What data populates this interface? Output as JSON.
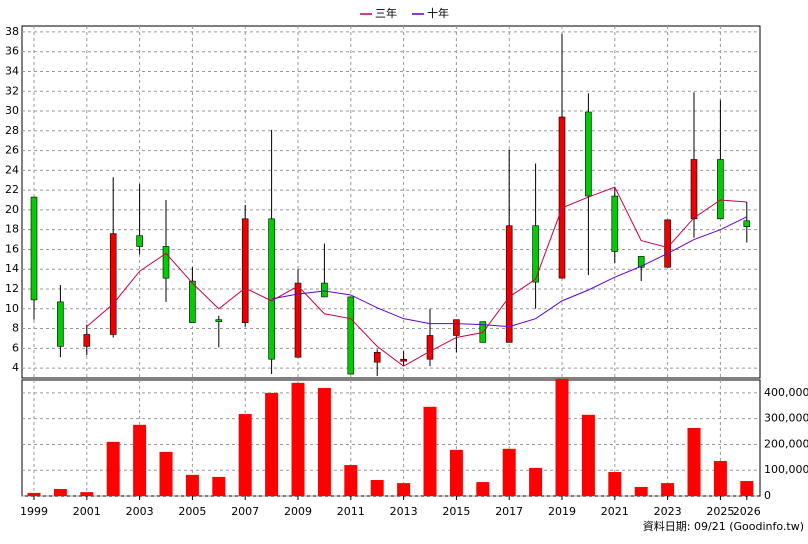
{
  "chart_data": [
    {
      "type": "candlestick",
      "open": [
        21.3,
        10.7,
        6.2,
        7.4,
        17.4,
        16.3,
        12.8,
        8.9,
        8.6,
        19.1,
        5.1,
        12.6,
        11.2,
        4.6,
        4.7,
        4.9,
        7.3,
        8.7,
        6.6,
        18.4,
        13.1,
        29.9,
        21.4,
        15.3,
        14.2,
        19.1,
        25.1,
        18.9
      ],
      "high": [
        21.3,
        12.4,
        8.4,
        23.3,
        22.6,
        21.0,
        14.2,
        9.3,
        20.5,
        28.1,
        14.0,
        16.6,
        11.2,
        5.9,
        5.7,
        10.0,
        8.9,
        8.7,
        26.1,
        24.7,
        37.8,
        31.8,
        22.3,
        15.3,
        19.0,
        31.9,
        31.1,
        20.8
      ],
      "low": [
        8.9,
        5.1,
        5.3,
        7.1,
        15.5,
        10.7,
        8.6,
        6.1,
        8.2,
        3.4,
        5.1,
        11.2,
        3.4,
        3.2,
        4.2,
        4.2,
        5.6,
        6.6,
        6.6,
        10.0,
        13.1,
        13.4,
        14.6,
        12.8,
        14.2,
        17.2,
        19.1,
        16.7
      ],
      "close": [
        10.9,
        6.2,
        7.4,
        17.6,
        16.3,
        13.1,
        8.6,
        8.7,
        19.1,
        4.9,
        12.6,
        11.2,
        3.4,
        5.6,
        4.9,
        7.3,
        8.9,
        6.6,
        18.4,
        12.7,
        29.4,
        21.4,
        15.8,
        14.2,
        19.0,
        25.1,
        19.1,
        18.3
      ],
      "up_color": "#ee0000",
      "down_color": "#00cc00",
      "series": [
        {
          "name": "三年",
          "color": "#cc0044",
          "values": [
            null,
            null,
            8.2,
            10.5,
            13.8,
            15.6,
            12.6,
            10.0,
            12.1,
            10.8,
            12.3,
            9.5,
            9.0,
            6.2,
            4.2,
            5.7,
            7.1,
            7.6,
            11.2,
            13.0,
            20.2,
            21.3,
            22.3,
            16.9,
            16.2,
            19.2,
            21.0,
            20.8
          ]
        },
        {
          "name": "十年",
          "color": "#6600cc",
          "values": [
            null,
            null,
            null,
            null,
            null,
            null,
            null,
            null,
            null,
            11.0,
            11.5,
            11.8,
            11.4,
            10.1,
            9.0,
            8.5,
            8.5,
            8.4,
            8.2,
            9.0,
            10.8,
            11.9,
            13.2,
            14.3,
            15.6,
            17.0,
            18.0,
            19.3
          ]
        }
      ],
      "ylim": [
        3,
        38.6
      ],
      "yticks": [
        4,
        6,
        8,
        10,
        12,
        14,
        16,
        18,
        20,
        22,
        24,
        26,
        28,
        30,
        32,
        34,
        36,
        38
      ],
      "grid": true
    },
    {
      "type": "bar",
      "categories": [
        "1999",
        null,
        "2001",
        null,
        "2003",
        null,
        "2005",
        null,
        "2007",
        null,
        "2009",
        null,
        "2011",
        null,
        "2013",
        null,
        "2015",
        null,
        "2017",
        null,
        "2019",
        null,
        "2021",
        null,
        "2023",
        null,
        "2025",
        "2026"
      ],
      "values": [
        12000,
        27000,
        15000,
        210000,
        276000,
        171000,
        82000,
        74000,
        318000,
        400000,
        439000,
        419000,
        120000,
        62000,
        50000,
        346000,
        179000,
        54000,
        183000,
        109000,
        454000,
        315000,
        93000,
        35000,
        50000,
        264000,
        136000,
        58000
      ],
      "color": "#ff0000",
      "ylim": [
        0,
        450000
      ],
      "yticks": [
        0,
        {
          "value": 100000,
          "label": "100,000"
        },
        {
          "value": 200000,
          "label": "200,000"
        },
        {
          "value": 300000,
          "label": "300,000"
        },
        {
          "value": 400000,
          "label": "400,000"
        }
      ],
      "grid": true
    }
  ],
  "footer": "資料日期: 09/21  (Goodinfo.tw)"
}
